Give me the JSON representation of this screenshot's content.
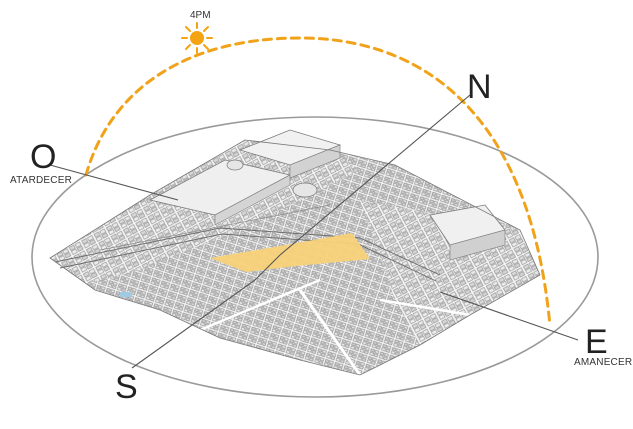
{
  "time": "4PM",
  "directions": {
    "north": "N",
    "south": "S",
    "east": "E",
    "west": "O"
  },
  "labels": {
    "sunset": "ATARDECER",
    "sunrise": "AMANECER"
  },
  "colors": {
    "sun": "#f4a412",
    "sun_path": "#f0a21a",
    "highlight_area": "#f8d27a",
    "ellipse": "#9a9a9a",
    "leader_lines": "#555555",
    "buildings": "#e4e4e4",
    "building_edges": "#8a8a8a"
  },
  "icons": {
    "sun": "sun-icon"
  }
}
